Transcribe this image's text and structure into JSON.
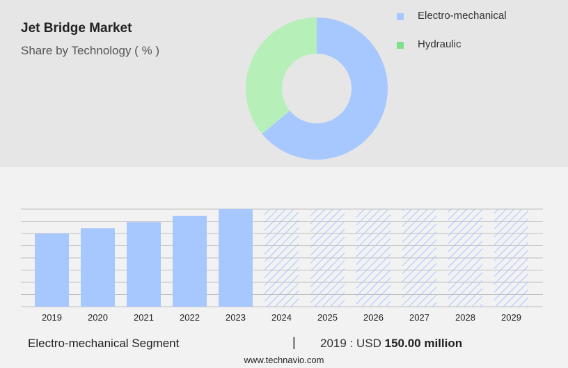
{
  "header": {
    "title": "Jet Bridge Market",
    "subtitle": "Share by Technology ( % )"
  },
  "legend": [
    {
      "label": "Electro-mechanical",
      "color": "#a7c7ff"
    },
    {
      "label": "Hydraulic",
      "color": "#7ee08a"
    }
  ],
  "colors": {
    "bar": "#a7c7ff",
    "forecast_hatch": "#a7c7ff",
    "donut_primary": "#a7c7ff",
    "donut_secondary": "#b6f0b8",
    "top_background": "#e6e6e6",
    "bottom_background": "#f2f2f2",
    "grid": "#bfbfbf"
  },
  "chart_data": [
    {
      "type": "pie",
      "variant": "donut",
      "labels": [
        "Electro-mechanical",
        "Hydraulic"
      ],
      "values": [
        64,
        36
      ]
    },
    {
      "type": "bar",
      "categories": [
        "2019",
        "2020",
        "2021",
        "2022",
        "2023",
        "2024",
        "2025",
        "2026",
        "2027",
        "2028",
        "2029"
      ],
      "values": [
        150.0,
        161.0,
        173.0,
        186.0,
        200.0,
        null,
        null,
        null,
        null,
        null,
        null
      ],
      "forecast": [
        "2024",
        "2025",
        "2026",
        "2027",
        "2028",
        "2029"
      ],
      "ylim": [
        0,
        200
      ],
      "grid": true
    }
  ],
  "footer": {
    "segment": "Electro-mechanical Segment",
    "separator": "|",
    "year_prefix": "2019 : USD",
    "value": "150.00 million",
    "url": "www.technavio.com"
  }
}
